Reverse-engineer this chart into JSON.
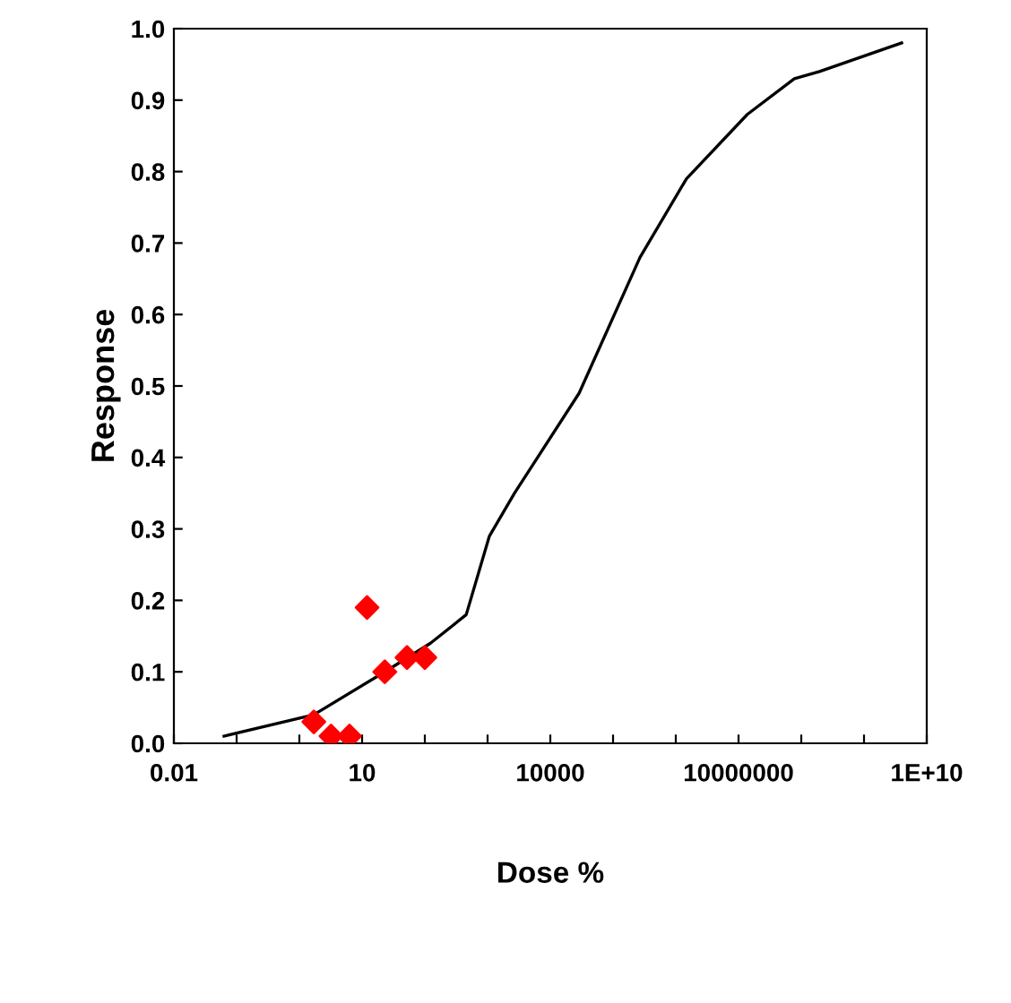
{
  "chart_data": {
    "type": "line",
    "xlabel": "Dose %",
    "ylabel": "Response",
    "log": "x",
    "grid": false,
    "xlim": [
      0.01,
      10000000000.0
    ],
    "ylim": [
      0,
      1.0
    ],
    "xticks": [
      0.01,
      {
        "value": 0.1,
        "label": null
      },
      {
        "value": 1,
        "label": null
      },
      10,
      {
        "value": 100,
        "label": null
      },
      {
        "value": 1000,
        "label": null
      },
      10000,
      {
        "value": 100000,
        "label": null
      },
      {
        "value": 1000000,
        "label": null
      },
      10000000,
      {
        "value": 100000000,
        "label": null
      },
      {
        "value": 1000000000,
        "label": null
      },
      {
        "value": 10000000000.0,
        "label": "1E+10"
      }
    ],
    "yticks": [
      {
        "value": 0,
        "label": "0.0"
      },
      0.1,
      0.2,
      0.3,
      0.4,
      0.5,
      0.6,
      0.7,
      0.8,
      0.9,
      {
        "value": 1.0,
        "label": "1.0"
      }
    ],
    "series": [
      {
        "color": "#000000",
        "marker": "none",
        "x": [
          0.063,
          1.7,
          23,
          123,
          457,
          1070,
          2690,
          28800,
          269000,
          1480000,
          13800000,
          77600000,
          195000000,
          3980000000
        ],
        "values": [
          0.01,
          0.04,
          0.1,
          0.14,
          0.18,
          0.29,
          0.35,
          0.49,
          0.68,
          0.79,
          0.88,
          0.93,
          0.94,
          0.98
        ]
      },
      {
        "type": "scatter",
        "color": "#ff0000",
        "marker": "diamond",
        "x": [
          1.7,
          3.2,
          6.3,
          12,
          23,
          52,
          100
        ],
        "values": [
          0.03,
          0.01,
          0.01,
          0.19,
          0.1,
          0.12,
          0.12
        ]
      }
    ]
  }
}
